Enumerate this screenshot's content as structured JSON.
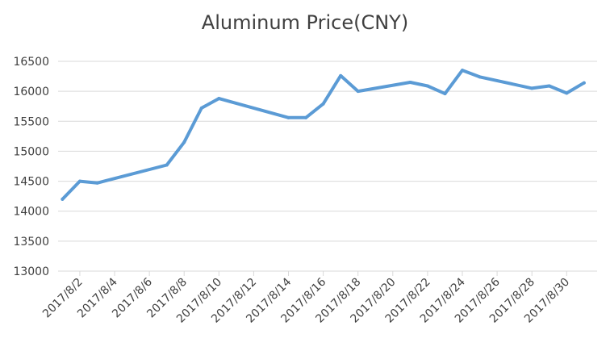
{
  "chart_data": {
    "type": "line",
    "title": "Aluminum Price(CNY)",
    "xlabel": "",
    "ylabel": "",
    "ylim": [
      13000,
      16500
    ],
    "yticks": [
      13000,
      13500,
      14000,
      14500,
      15000,
      15500,
      16000,
      16500
    ],
    "xlim": [
      "2017/8/1",
      "2017/8/31"
    ],
    "xtick_labels": [
      "2017/8/2",
      "2017/8/4",
      "2017/8/6",
      "2017/8/8",
      "2017/8/10",
      "2017/8/12",
      "2017/8/14",
      "2017/8/16",
      "2017/8/18",
      "2017/8/20",
      "2017/8/22",
      "2017/8/24",
      "2017/8/26",
      "2017/8/28",
      "2017/8/30"
    ],
    "grid": true,
    "legend": "none",
    "series": [
      {
        "color": "#5B9BD5",
        "points": [
          {
            "x": "2017/8/1",
            "y": 14200
          },
          {
            "x": "2017/8/2",
            "y": 14500
          },
          {
            "x": "2017/8/3",
            "y": 14470
          },
          {
            "x": "2017/8/7",
            "y": 14770
          },
          {
            "x": "2017/8/8",
            "y": 15150
          },
          {
            "x": "2017/8/9",
            "y": 15720
          },
          {
            "x": "2017/8/10",
            "y": 15880
          },
          {
            "x": "2017/8/14",
            "y": 15560
          },
          {
            "x": "2017/8/15",
            "y": 15560
          },
          {
            "x": "2017/8/16",
            "y": 15790
          },
          {
            "x": "2017/8/17",
            "y": 16260
          },
          {
            "x": "2017/8/18",
            "y": 16000
          },
          {
            "x": "2017/8/21",
            "y": 16150
          },
          {
            "x": "2017/8/22",
            "y": 16090
          },
          {
            "x": "2017/8/23",
            "y": 15960
          },
          {
            "x": "2017/8/24",
            "y": 16350
          },
          {
            "x": "2017/8/25",
            "y": 16240
          },
          {
            "x": "2017/8/28",
            "y": 16050
          },
          {
            "x": "2017/8/29",
            "y": 16090
          },
          {
            "x": "2017/8/30",
            "y": 15970
          },
          {
            "x": "2017/8/31",
            "y": 16140
          }
        ]
      }
    ]
  }
}
